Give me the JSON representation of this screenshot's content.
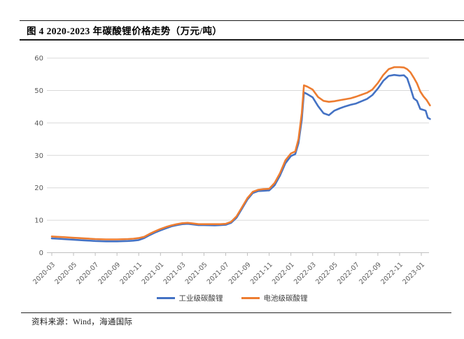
{
  "figure": {
    "title": "图 4 2020-2023 年碳酸锂价格走势（万元/吨）",
    "source": "资料来源：Wind，海通国际"
  },
  "chart_data": {
    "type": "line",
    "title": "2020-2023 年碳酸锂价格走势",
    "unit": "万元/吨",
    "xlabel": "",
    "ylabel": "",
    "ylim": [
      0,
      60
    ],
    "y_ticks": [
      0,
      10,
      20,
      30,
      40,
      50,
      60
    ],
    "x_tick_labels": [
      "2020-03",
      "2020-05",
      "2020-07",
      "2020-09",
      "2020-11",
      "2021-01",
      "2021-03",
      "2021-05",
      "2021-07",
      "2021-09",
      "2021-11",
      "2022-01",
      "2022-03",
      "2022-05",
      "2022-07",
      "2022-09",
      "2022-11",
      "2023-01"
    ],
    "x_tick_month_step": 2,
    "grid": "horizontal",
    "legend_position": "bottom-center",
    "colors": {
      "industrial": "#4472C4",
      "battery": "#ED7D31",
      "gridline": "#d9d9d9",
      "axis": "#bfbfbf",
      "tick_text": "#595959"
    },
    "series": [
      {
        "name": "工业级碳酸锂",
        "key": "industrial-grade-line",
        "color": "#4472C4",
        "points": [
          [
            0,
            4.4
          ],
          [
            0.5,
            4.3
          ],
          [
            1,
            4.2
          ],
          [
            1.5,
            4.1
          ],
          [
            2,
            4.0
          ],
          [
            2.5,
            3.9
          ],
          [
            3,
            3.8
          ],
          [
            3.5,
            3.7
          ],
          [
            4,
            3.6
          ],
          [
            5,
            3.5
          ],
          [
            6,
            3.5
          ],
          [
            7,
            3.6
          ],
          [
            7.5,
            3.7
          ],
          [
            8,
            3.9
          ],
          [
            8.5,
            4.5
          ],
          [
            9,
            5.4
          ],
          [
            9.5,
            6.2
          ],
          [
            10,
            6.9
          ],
          [
            10.5,
            7.5
          ],
          [
            11,
            8.1
          ],
          [
            11.5,
            8.5
          ],
          [
            12,
            8.8
          ],
          [
            12.5,
            8.9
          ],
          [
            13,
            8.7
          ],
          [
            13.5,
            8.5
          ],
          [
            14,
            8.5
          ],
          [
            15,
            8.4
          ],
          [
            15.5,
            8.5
          ],
          [
            16,
            8.6
          ],
          [
            16.5,
            9.2
          ],
          [
            17,
            10.8
          ],
          [
            17.5,
            13.6
          ],
          [
            18,
            16.4
          ],
          [
            18.5,
            18.4
          ],
          [
            19,
            19.0
          ],
          [
            19.5,
            19.1
          ],
          [
            20,
            19.2
          ],
          [
            20.5,
            20.8
          ],
          [
            21,
            23.8
          ],
          [
            21.5,
            27.6
          ],
          [
            22,
            29.8
          ],
          [
            22.4,
            30.4
          ],
          [
            22.7,
            33.8
          ],
          [
            23,
            41.0
          ],
          [
            23.2,
            49.4
          ],
          [
            23.5,
            48.9
          ],
          [
            24,
            47.9
          ],
          [
            24.5,
            45.2
          ],
          [
            25,
            43.0
          ],
          [
            25.5,
            42.4
          ],
          [
            26,
            43.8
          ],
          [
            26.5,
            44.5
          ],
          [
            27,
            45.1
          ],
          [
            27.5,
            45.6
          ],
          [
            28,
            46.0
          ],
          [
            28.5,
            46.7
          ],
          [
            29,
            47.4
          ],
          [
            29.5,
            48.6
          ],
          [
            30,
            50.6
          ],
          [
            30.5,
            53.0
          ],
          [
            31,
            54.5
          ],
          [
            31.5,
            54.8
          ],
          [
            32,
            54.6
          ],
          [
            32.4,
            54.7
          ],
          [
            32.7,
            53.8
          ],
          [
            33,
            50.8
          ],
          [
            33.3,
            47.6
          ],
          [
            33.6,
            46.8
          ],
          [
            33.9,
            44.3
          ],
          [
            34.2,
            44.0
          ],
          [
            34.4,
            43.8
          ],
          [
            34.6,
            41.6
          ],
          [
            34.8,
            41.2
          ]
        ]
      },
      {
        "name": "电池级碳酸锂",
        "key": "battery-grade-line",
        "color": "#ED7D31",
        "points": [
          [
            0,
            5.0
          ],
          [
            0.5,
            4.9
          ],
          [
            1,
            4.8
          ],
          [
            1.5,
            4.7
          ],
          [
            2,
            4.6
          ],
          [
            2.5,
            4.5
          ],
          [
            3,
            4.4
          ],
          [
            3.5,
            4.3
          ],
          [
            4,
            4.2
          ],
          [
            5,
            4.1
          ],
          [
            6,
            4.1
          ],
          [
            7,
            4.2
          ],
          [
            7.5,
            4.3
          ],
          [
            8,
            4.5
          ],
          [
            8.5,
            4.9
          ],
          [
            9,
            5.8
          ],
          [
            9.5,
            6.6
          ],
          [
            10,
            7.3
          ],
          [
            10.5,
            7.9
          ],
          [
            11,
            8.4
          ],
          [
            11.5,
            8.8
          ],
          [
            12,
            9.1
          ],
          [
            12.5,
            9.2
          ],
          [
            13,
            9.0
          ],
          [
            13.5,
            8.8
          ],
          [
            14,
            8.8
          ],
          [
            15,
            8.8
          ],
          [
            15.5,
            8.8
          ],
          [
            16,
            8.9
          ],
          [
            16.5,
            9.5
          ],
          [
            17,
            11.2
          ],
          [
            17.5,
            14.0
          ],
          [
            18,
            16.8
          ],
          [
            18.5,
            18.8
          ],
          [
            19,
            19.4
          ],
          [
            19.5,
            19.6
          ],
          [
            20,
            19.7
          ],
          [
            20.5,
            21.5
          ],
          [
            21,
            24.5
          ],
          [
            21.5,
            28.5
          ],
          [
            22,
            30.6
          ],
          [
            22.4,
            31.2
          ],
          [
            22.7,
            35.0
          ],
          [
            23,
            43.0
          ],
          [
            23.2,
            51.6
          ],
          [
            23.5,
            51.2
          ],
          [
            24,
            50.3
          ],
          [
            24.5,
            48.0
          ],
          [
            25,
            46.8
          ],
          [
            25.5,
            46.5
          ],
          [
            26,
            46.7
          ],
          [
            26.5,
            47.0
          ],
          [
            27,
            47.3
          ],
          [
            27.5,
            47.6
          ],
          [
            28,
            48.1
          ],
          [
            28.5,
            48.7
          ],
          [
            29,
            49.3
          ],
          [
            29.5,
            50.3
          ],
          [
            30,
            52.3
          ],
          [
            30.5,
            54.8
          ],
          [
            31,
            56.6
          ],
          [
            31.5,
            57.2
          ],
          [
            32,
            57.2
          ],
          [
            32.4,
            57.1
          ],
          [
            32.7,
            56.6
          ],
          [
            33,
            55.6
          ],
          [
            33.3,
            54.0
          ],
          [
            33.6,
            52.2
          ],
          [
            33.9,
            49.7
          ],
          [
            34.2,
            48.2
          ],
          [
            34.5,
            47.0
          ],
          [
            34.8,
            45.4
          ]
        ]
      }
    ]
  }
}
